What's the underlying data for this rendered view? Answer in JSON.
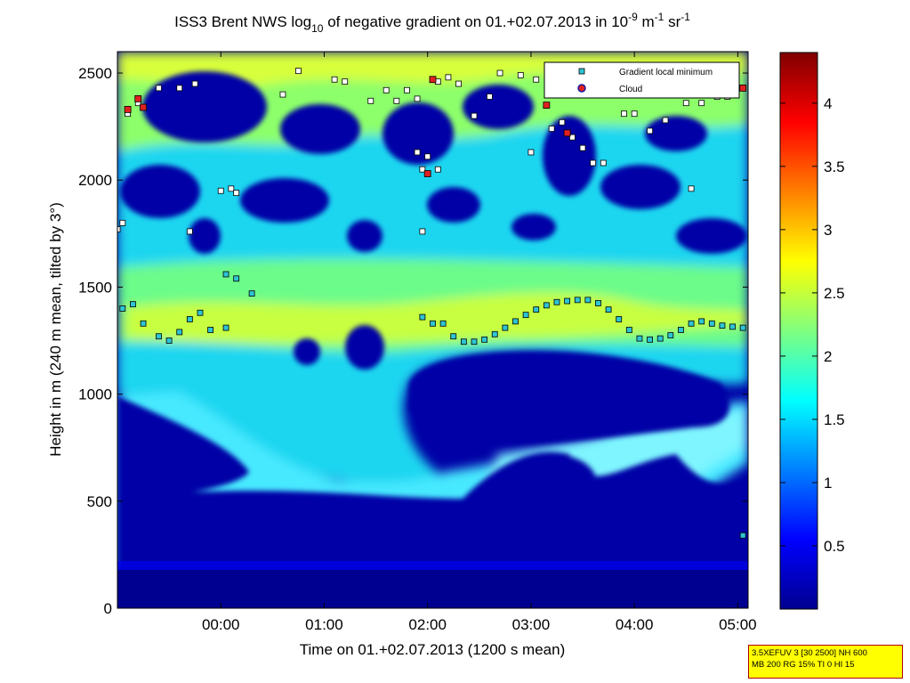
{
  "chart_data": {
    "type": "heatmap",
    "title_parts": {
      "pre": "ISS3 Brent NWS log",
      "sub": "10",
      "mid": " of negative gradient on 01.+02.07.2013 in 10",
      "sup1": "-9",
      "mid2": " m",
      "sup2": "-1",
      "mid3": " sr",
      "sup3": "-1"
    },
    "xlabel": "Time on 01.+02.07.2013 (1200 s mean)",
    "ylabel": "Height in m (240 m mean, tilted by 3°)",
    "xlim_hours": [
      -1.0,
      5.1
    ],
    "ylim": [
      0,
      2600
    ],
    "x_ticks": [
      "00:00",
      "01:00",
      "02:00",
      "03:00",
      "04:00",
      "05:00"
    ],
    "y_ticks": [
      "0",
      "500",
      "1000",
      "1500",
      "2000",
      "2500"
    ],
    "colorbar_ticks": [
      "0.5",
      "1",
      "1.5",
      "2",
      "2.5",
      "3",
      "3.5",
      "4"
    ],
    "colorbar_range": [
      0,
      4.4
    ],
    "colormap": "jet",
    "legend_position": "top-right",
    "legend": [
      {
        "label": "Gradient local minimum",
        "marker": "square",
        "color": "#2ec4d4"
      },
      {
        "label": "Cloud",
        "marker": "circle",
        "color": "#e02020"
      }
    ],
    "gradient_minimum_layer": [
      {
        "x": -0.95,
        "y": 1400
      },
      {
        "x": -0.85,
        "y": 1420
      },
      {
        "x": -0.75,
        "y": 1330
      },
      {
        "x": -0.6,
        "y": 1270
      },
      {
        "x": -0.5,
        "y": 1250
      },
      {
        "x": -0.4,
        "y": 1290
      },
      {
        "x": -0.3,
        "y": 1350
      },
      {
        "x": -0.2,
        "y": 1380
      },
      {
        "x": -0.1,
        "y": 1300
      },
      {
        "x": 0.05,
        "y": 1310
      },
      {
        "x": 1.95,
        "y": 1360
      },
      {
        "x": 2.05,
        "y": 1330
      },
      {
        "x": 2.15,
        "y": 1330
      },
      {
        "x": 2.25,
        "y": 1270
      },
      {
        "x": 2.35,
        "y": 1245
      },
      {
        "x": 2.45,
        "y": 1245
      },
      {
        "x": 2.55,
        "y": 1255
      },
      {
        "x": 2.65,
        "y": 1280
      },
      {
        "x": 2.75,
        "y": 1310
      },
      {
        "x": 2.85,
        "y": 1340
      },
      {
        "x": 2.95,
        "y": 1370
      },
      {
        "x": 3.05,
        "y": 1395
      },
      {
        "x": 3.15,
        "y": 1415
      },
      {
        "x": 3.25,
        "y": 1430
      },
      {
        "x": 3.35,
        "y": 1435
      },
      {
        "x": 3.45,
        "y": 1440
      },
      {
        "x": 3.55,
        "y": 1440
      },
      {
        "x": 3.65,
        "y": 1425
      },
      {
        "x": 3.75,
        "y": 1395
      },
      {
        "x": 3.85,
        "y": 1350
      },
      {
        "x": 3.95,
        "y": 1300
      },
      {
        "x": 4.05,
        "y": 1260
      },
      {
        "x": 4.15,
        "y": 1255
      },
      {
        "x": 4.25,
        "y": 1260
      },
      {
        "x": 4.35,
        "y": 1275
      },
      {
        "x": 4.45,
        "y": 1300
      },
      {
        "x": 4.55,
        "y": 1330
      },
      {
        "x": 4.65,
        "y": 1340
      },
      {
        "x": 4.75,
        "y": 1330
      },
      {
        "x": 4.85,
        "y": 1320
      },
      {
        "x": 4.95,
        "y": 1315
      },
      {
        "x": 5.05,
        "y": 1310
      },
      {
        "x": 5.05,
        "y": 340
      },
      {
        "x": -1.0,
        "y": 1770
      },
      {
        "x": -0.95,
        "y": 1800
      },
      {
        "x": 0.0,
        "y": 1950
      },
      {
        "x": 0.1,
        "y": 1960
      },
      {
        "x": 0.15,
        "y": 1940
      },
      {
        "x": 0.05,
        "y": 1560
      },
      {
        "x": 0.15,
        "y": 1540
      },
      {
        "x": 0.3,
        "y": 1470
      },
      {
        "x": -0.3,
        "y": 1760
      },
      {
        "x": -0.9,
        "y": 2310
      },
      {
        "x": -0.8,
        "y": 2360
      },
      {
        "x": -0.6,
        "y": 2430
      },
      {
        "x": -0.4,
        "y": 2430
      },
      {
        "x": -0.25,
        "y": 2450
      },
      {
        "x": 0.6,
        "y": 2400
      },
      {
        "x": 0.75,
        "y": 2510
      },
      {
        "x": 1.1,
        "y": 2470
      },
      {
        "x": 1.2,
        "y": 2460
      },
      {
        "x": 1.45,
        "y": 2370
      },
      {
        "x": 1.6,
        "y": 2420
      },
      {
        "x": 1.7,
        "y": 2370
      },
      {
        "x": 1.8,
        "y": 2420
      },
      {
        "x": 1.9,
        "y": 2380
      },
      {
        "x": 2.1,
        "y": 2460
      },
      {
        "x": 2.2,
        "y": 2480
      },
      {
        "x": 2.3,
        "y": 2450
      },
      {
        "x": 2.45,
        "y": 2300
      },
      {
        "x": 2.6,
        "y": 2390
      },
      {
        "x": 2.7,
        "y": 2500
      },
      {
        "x": 2.9,
        "y": 2490
      },
      {
        "x": 3.05,
        "y": 2470
      },
      {
        "x": 3.2,
        "y": 2240
      },
      {
        "x": 3.3,
        "y": 2270
      },
      {
        "x": 3.4,
        "y": 2200
      },
      {
        "x": 3.5,
        "y": 2150
      },
      {
        "x": 3.6,
        "y": 2080
      },
      {
        "x": 3.7,
        "y": 2080
      },
      {
        "x": 3.9,
        "y": 2310
      },
      {
        "x": 4.0,
        "y": 2310
      },
      {
        "x": 4.15,
        "y": 2230
      },
      {
        "x": 4.3,
        "y": 2280
      },
      {
        "x": 4.5,
        "y": 2360
      },
      {
        "x": 4.65,
        "y": 2360
      },
      {
        "x": 4.8,
        "y": 2390
      },
      {
        "x": 4.9,
        "y": 2390
      },
      {
        "x": 1.9,
        "y": 2130
      },
      {
        "x": 2.0,
        "y": 2110
      },
      {
        "x": 2.1,
        "y": 2050
      },
      {
        "x": 1.95,
        "y": 2050
      },
      {
        "x": 1.95,
        "y": 1760
      },
      {
        "x": 3.0,
        "y": 2130
      },
      {
        "x": 4.55,
        "y": 1960
      }
    ],
    "cloud_points": [
      {
        "x": -0.9,
        "y": 2330
      },
      {
        "x": -0.8,
        "y": 2380
      },
      {
        "x": -0.75,
        "y": 2340
      },
      {
        "x": 2.05,
        "y": 2470
      },
      {
        "x": 2.0,
        "y": 2030
      },
      {
        "x": 3.15,
        "y": 2350
      },
      {
        "x": 3.35,
        "y": 2220
      },
      {
        "x": 5.05,
        "y": 2430
      }
    ]
  },
  "info_box": {
    "line1": "3.5XEFUV 3 [30 2500] NH 600",
    "line2": "MB 200 RG 15% TI 0 HI 15"
  }
}
